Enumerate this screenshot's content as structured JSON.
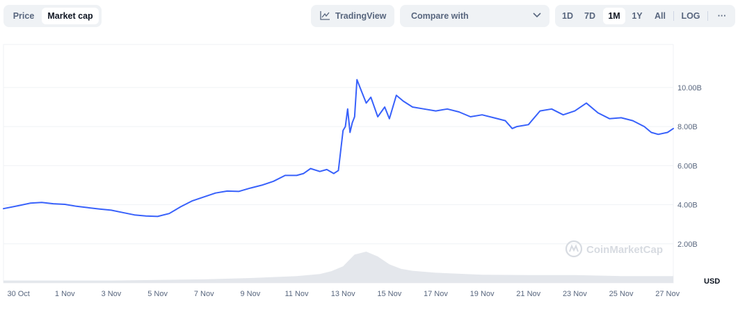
{
  "tabs": {
    "price_label": "Price",
    "market_cap_label": "Market cap"
  },
  "toolbar": {
    "tradingview_label": "TradingView",
    "compare_label": "Compare with",
    "ranges": [
      "1D",
      "7D",
      "1M",
      "1Y",
      "All"
    ],
    "active_range": "1M",
    "log_label": "LOG",
    "more_label": "···"
  },
  "watermark": "CoinMarketCap",
  "colors": {
    "line": "#3861fb",
    "volume": "#e4e7ec",
    "grid": "#eff2f5"
  },
  "chart_data": {
    "type": "line",
    "currency_label": "USD",
    "x_tick_labels": [
      "30 Oct",
      "1 Nov",
      "3 Nov",
      "5 Nov",
      "7 Nov",
      "9 Nov",
      "11 Nov",
      "13 Nov",
      "15 Nov",
      "17 Nov",
      "19 Nov",
      "21 Nov",
      "23 Nov",
      "25 Nov",
      "27 Nov"
    ],
    "y_tick_labels": [
      "2.00B",
      "4.00B",
      "6.00B",
      "8.00B",
      "10.00B"
    ],
    "ylim": [
      0,
      12.2
    ],
    "xlim": [
      -0.65,
      28.25
    ],
    "grid": true,
    "series": [
      {
        "x": [
          -0.65,
          0.0,
          0.5,
          1.0,
          1.5,
          2.0,
          2.5,
          3.0,
          3.5,
          4.0,
          4.5,
          5.0,
          5.5,
          6.0,
          6.5,
          7.0,
          7.5,
          8.0,
          8.5,
          9.0,
          9.5,
          10.0,
          10.5,
          11.0,
          11.5,
          12.0,
          12.3,
          12.6,
          13.0,
          13.3,
          13.6,
          13.8,
          14.0,
          14.1,
          14.2,
          14.3,
          14.4,
          14.5,
          14.6,
          14.8,
          15.0,
          15.2,
          15.5,
          15.8,
          16.0,
          16.3,
          16.6,
          17.0,
          17.5,
          18.0,
          18.5,
          19.0,
          19.5,
          20.0,
          20.5,
          21.0,
          21.3,
          21.5,
          22.0,
          22.5,
          23.0,
          23.5,
          24.0,
          24.5,
          25.0,
          25.5,
          26.0,
          26.5,
          27.0,
          27.3,
          27.6,
          28.0,
          28.25
        ],
        "y": [
          3.8,
          3.95,
          4.08,
          4.12,
          4.05,
          4.02,
          3.92,
          3.85,
          3.78,
          3.72,
          3.6,
          3.48,
          3.42,
          3.4,
          3.55,
          3.9,
          4.2,
          4.4,
          4.6,
          4.7,
          4.68,
          4.85,
          5.0,
          5.2,
          5.5,
          5.5,
          5.6,
          5.85,
          5.7,
          5.8,
          5.6,
          5.75,
          7.8,
          8.0,
          8.9,
          7.7,
          8.2,
          8.5,
          10.4,
          9.8,
          9.2,
          9.5,
          8.5,
          9.0,
          8.4,
          9.6,
          9.3,
          9.0,
          8.9,
          8.8,
          8.9,
          8.75,
          8.5,
          8.6,
          8.45,
          8.3,
          7.9,
          8.0,
          8.1,
          8.8,
          8.9,
          8.6,
          8.8,
          9.2,
          8.7,
          8.4,
          8.45,
          8.3,
          8.0,
          7.7,
          7.6,
          7.7,
          7.9
        ]
      }
    ],
    "volume": {
      "x": [
        -0.65,
        4.0,
        8.0,
        10.0,
        12.0,
        13.0,
        13.5,
        14.0,
        14.5,
        15.0,
        15.5,
        16.0,
        16.5,
        17.0,
        18.0,
        20.0,
        22.0,
        24.0,
        26.0,
        28.25
      ],
      "y": [
        0.12,
        0.12,
        0.18,
        0.25,
        0.35,
        0.45,
        0.6,
        0.85,
        1.45,
        1.6,
        1.35,
        0.95,
        0.72,
        0.62,
        0.52,
        0.42,
        0.4,
        0.4,
        0.35,
        0.35
      ]
    }
  }
}
